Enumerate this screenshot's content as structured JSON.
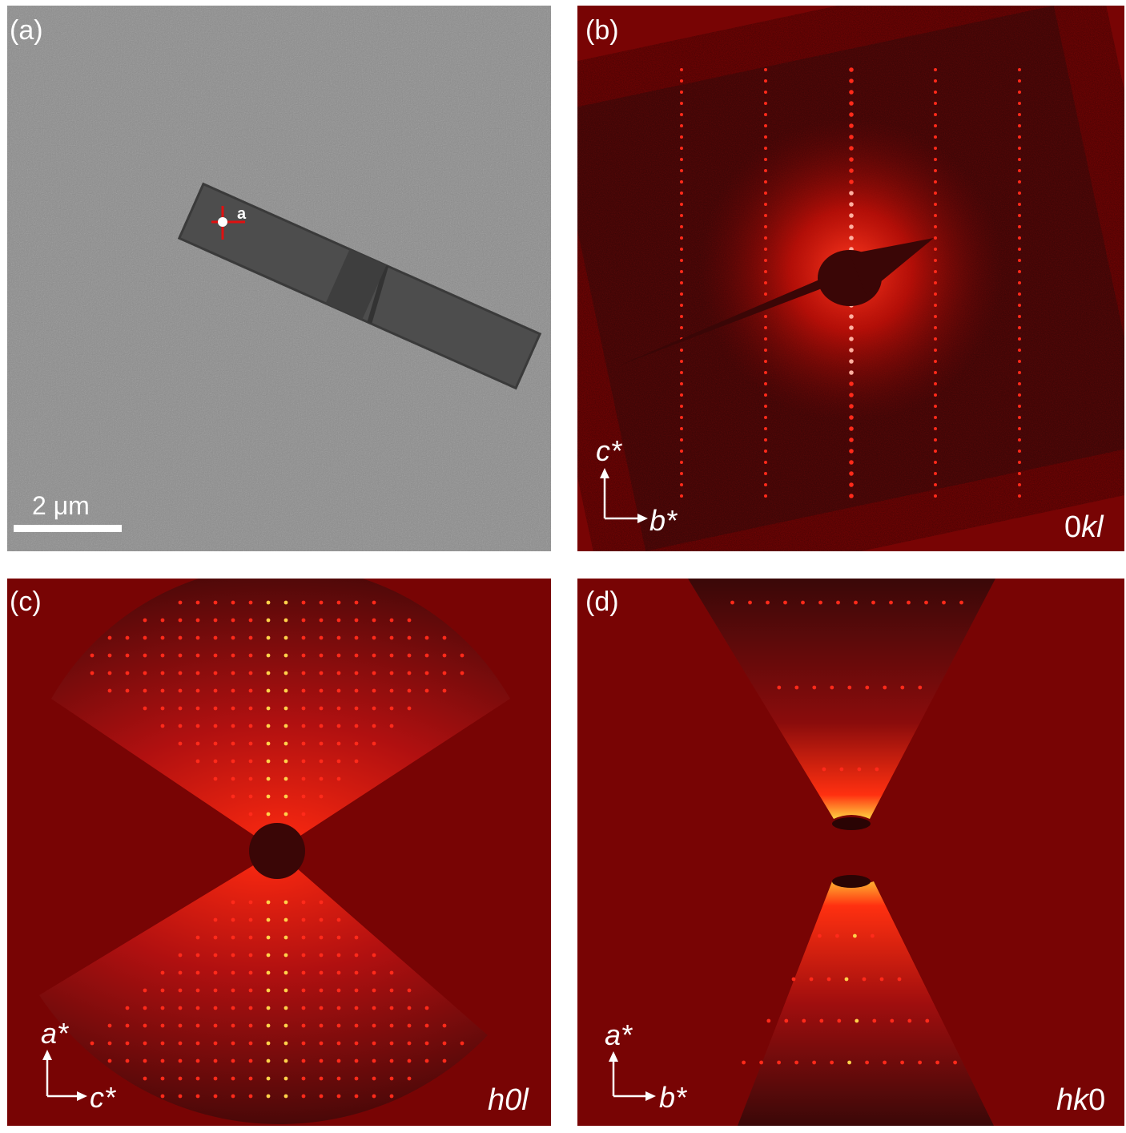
{
  "panels": {
    "a": {
      "label": "(a)",
      "scale_bar": "2 μm",
      "marker_label": "a"
    },
    "b": {
      "label": "(b)",
      "axis_v": "c*",
      "axis_h": "b*",
      "plane_prefix": "0",
      "plane_italic": "kl"
    },
    "c": {
      "label": "(c)",
      "axis_v": "a*",
      "axis_h": "c*",
      "plane_h": "h",
      "plane_mid": "0",
      "plane_l": "l"
    },
    "d": {
      "label": "(d)",
      "axis_v": "a*",
      "axis_h": "b*",
      "plane_italic": "hk",
      "plane_suffix": "0"
    }
  },
  "colors": {
    "background_red": "#780404",
    "spot": "#ff2a1a",
    "spot_bright": "#ffd24a",
    "micrograph_gray": "#8a8a8a"
  }
}
